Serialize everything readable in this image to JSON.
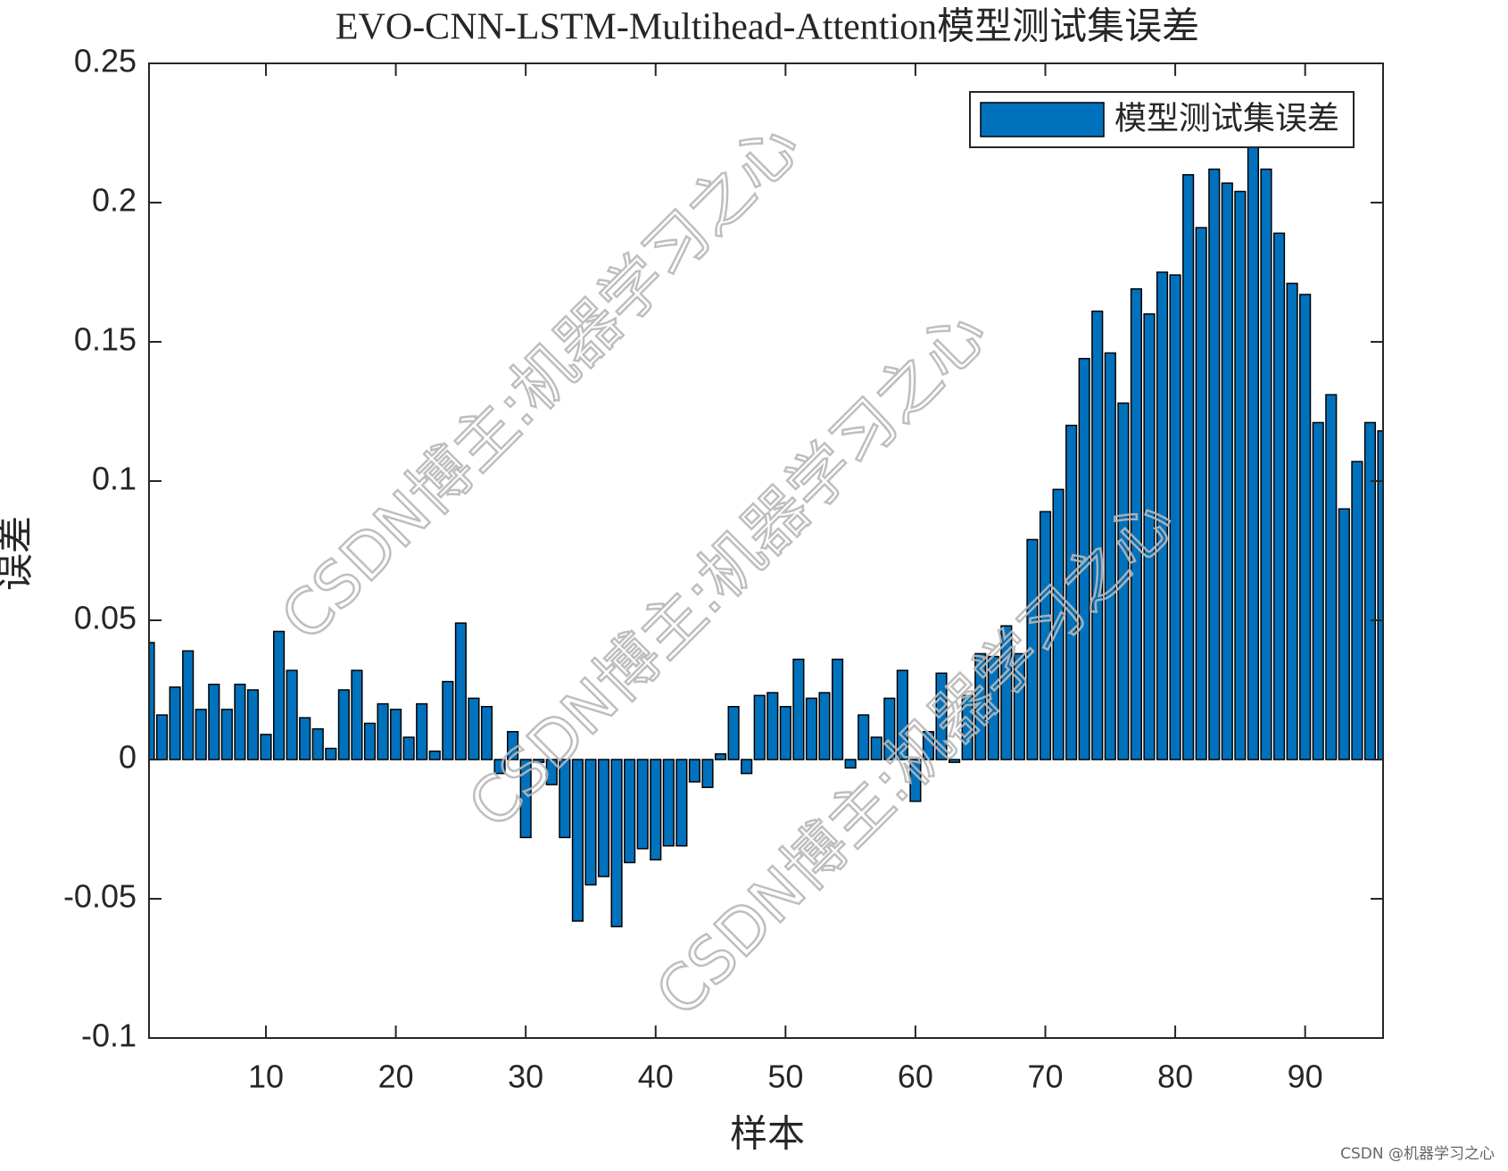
{
  "chart_data": {
    "type": "bar",
    "title": "EVO-CNN-LSTM-Multihead-Attention模型测试集误差",
    "x_label": "样本",
    "y_label": "误差",
    "x": [
      1,
      2,
      3,
      4,
      5,
      6,
      7,
      8,
      9,
      10,
      11,
      12,
      13,
      14,
      15,
      16,
      17,
      18,
      19,
      20,
      21,
      22,
      23,
      24,
      25,
      26,
      27,
      28,
      29,
      30,
      31,
      32,
      33,
      34,
      35,
      36,
      37,
      38,
      39,
      40,
      41,
      42,
      43,
      44,
      45,
      46,
      47,
      48,
      49,
      50,
      51,
      52,
      53,
      54,
      55,
      56,
      57,
      58,
      59,
      60,
      61,
      62,
      63,
      64,
      65,
      66,
      67,
      68,
      69,
      70,
      71,
      72,
      73,
      74,
      75,
      76,
      77,
      78,
      79,
      80,
      81,
      82,
      83,
      84,
      85,
      86,
      87,
      88,
      89,
      90,
      91,
      92,
      93,
      94,
      95,
      96
    ],
    "series": [
      {
        "name": "模型测试集误差",
        "color": "#0072BD",
        "values": [
          0.042,
          0.016,
          0.026,
          0.039,
          0.018,
          0.027,
          0.018,
          0.027,
          0.025,
          0.009,
          0.046,
          0.032,
          0.015,
          0.011,
          0.004,
          0.025,
          0.032,
          0.013,
          0.02,
          0.018,
          0.008,
          0.02,
          0.003,
          0.028,
          0.049,
          0.022,
          0.019,
          -0.005,
          0.01,
          -0.028,
          -0.001,
          -0.009,
          -0.028,
          -0.058,
          -0.045,
          -0.042,
          -0.06,
          -0.037,
          -0.032,
          -0.036,
          -0.031,
          -0.031,
          -0.008,
          -0.01,
          0.002,
          0.019,
          -0.005,
          0.023,
          0.024,
          0.019,
          0.036,
          0.022,
          0.024,
          0.036,
          -0.003,
          0.016,
          0.008,
          0.022,
          0.032,
          -0.015,
          0.01,
          0.031,
          -0.001,
          0.023,
          0.038,
          0.037,
          0.048,
          0.038,
          0.079,
          0.089,
          0.097,
          0.12,
          0.144,
          0.161,
          0.146,
          0.128,
          0.169,
          0.16,
          0.175,
          0.174,
          0.21,
          0.191,
          0.212,
          0.207,
          0.204,
          0.221,
          0.212,
          0.189,
          0.171,
          0.167,
          0.121,
          0.131,
          0.09,
          0.107,
          0.121,
          0.118
        ]
      }
    ],
    "xlim": [
      1,
      96
    ],
    "xticks": [
      10,
      20,
      30,
      40,
      50,
      60,
      70,
      80,
      90
    ],
    "ylim": [
      -0.1,
      0.25
    ],
    "yticks": [
      {
        "value": -0.1,
        "label": "-0.1"
      },
      {
        "value": -0.05,
        "label": "-0.05"
      },
      0,
      {
        "value": 0.05,
        "label": "0.05"
      },
      {
        "value": 0.1,
        "label": "0.1"
      },
      {
        "value": 0.15,
        "label": "0.15"
      },
      {
        "value": 0.2,
        "label": "0.2"
      },
      {
        "value": 0.25,
        "label": "0.25"
      }
    ],
    "grid": false,
    "legend": "northeast",
    "watermark": [
      "CSDN博主:机器学习之心",
      "CSDN博主:机器学习之心",
      "CSDN博主:机器学习之心"
    ],
    "footer": "CSDN @机器学习之心"
  }
}
